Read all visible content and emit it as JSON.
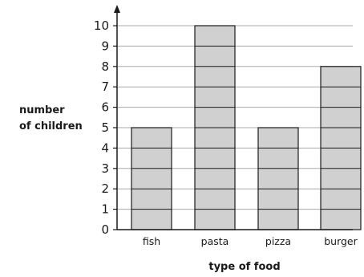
{
  "chart_data": {
    "type": "bar",
    "categories": [
      "fish",
      "pasta",
      "pizza",
      "burger"
    ],
    "values": [
      5,
      10,
      5,
      8
    ],
    "ylabel_lines": [
      "number",
      "of children"
    ],
    "xlabel": "type of food",
    "ylim": [
      0,
      10
    ],
    "yticks": [
      0,
      1,
      2,
      3,
      4,
      5,
      6,
      7,
      8,
      9,
      10
    ],
    "grid": true,
    "bar_color": "#d0d0d0",
    "bar_edge_color": "#1a1a1a",
    "grid_color": "#aaaaaa",
    "axis_color": "#1a1a1a"
  }
}
